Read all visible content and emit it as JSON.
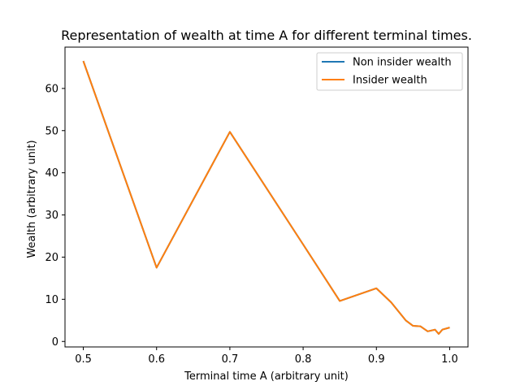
{
  "chart_data": {
    "type": "line",
    "title": "Representation of wealth at time A for different terminal times.",
    "xlabel": "Terminal time A (arbitrary unit)",
    "ylabel": "Wealth (arbitrary unit)",
    "xlim": [
      0.475,
      1.025
    ],
    "ylim": [
      -1.3,
      69.8
    ],
    "xticks": [
      0.5,
      0.6,
      0.7,
      0.8,
      0.9,
      1.0
    ],
    "xtick_labels": [
      "0.5",
      "0.6",
      "0.7",
      "0.8",
      "0.9",
      "1.0"
    ],
    "yticks": [
      0,
      10,
      20,
      30,
      40,
      50,
      60
    ],
    "ytick_labels": [
      "0",
      "10",
      "20",
      "30",
      "40",
      "50",
      "60"
    ],
    "legend_position": "top-right",
    "grid": false,
    "x": [
      0.5,
      0.6,
      0.7,
      0.8,
      0.85,
      0.9,
      0.92,
      0.94,
      0.95,
      0.96,
      0.97,
      0.98,
      0.985,
      0.99,
      1.0
    ],
    "series": [
      {
        "name": "Non insider wealth",
        "color": "#1f77b4",
        "values": [
          66.5,
          17.5,
          49.7,
          23.0,
          9.6,
          12.6,
          9.3,
          5.0,
          3.7,
          3.6,
          2.4,
          2.8,
          1.8,
          2.8,
          3.3
        ]
      },
      {
        "name": "Insider wealth",
        "color": "#ff7f0e",
        "values": [
          66.5,
          17.5,
          49.7,
          23.0,
          9.6,
          12.6,
          9.3,
          5.0,
          3.7,
          3.6,
          2.4,
          2.8,
          1.8,
          2.8,
          3.3
        ]
      }
    ]
  }
}
